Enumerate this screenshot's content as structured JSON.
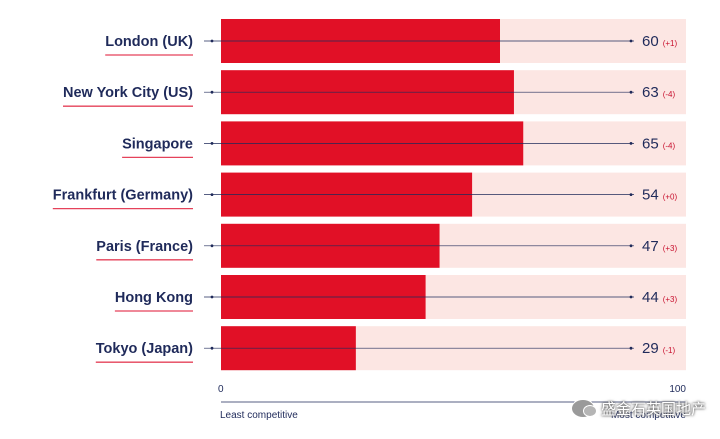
{
  "chart_data": {
    "type": "bar",
    "orientation": "horizontal",
    "categories": [
      "London (UK)",
      "New York City (US)",
      "Singapore",
      "Frankfurt (Germany)",
      "Paris (France)",
      "Hong Kong",
      "Tokyo (Japan)"
    ],
    "values": [
      60,
      63,
      65,
      54,
      47,
      44,
      29
    ],
    "value_labels": [
      "60",
      "63",
      "65",
      "54",
      "47",
      "44",
      "29"
    ],
    "changes": [
      "(+1)",
      "(-4)",
      "(-4)",
      "(+0)",
      "(+3)",
      "(+3)",
      "(-1)"
    ],
    "xlim": [
      0,
      100
    ],
    "x_tick_labels": [
      "0",
      "100"
    ],
    "x_axis_left_label": "Least competitive",
    "x_axis_right_label": "Most competitive",
    "colors": {
      "bar": "#e11026",
      "track": "#fce6e3",
      "label": "#1f2a5a",
      "label_underline": "#e5425a",
      "change": "#c8102e",
      "axis": "#1f2a5a"
    }
  },
  "watermark": {
    "icon": "wechat-icon",
    "text": "盛金石英国地产"
  }
}
